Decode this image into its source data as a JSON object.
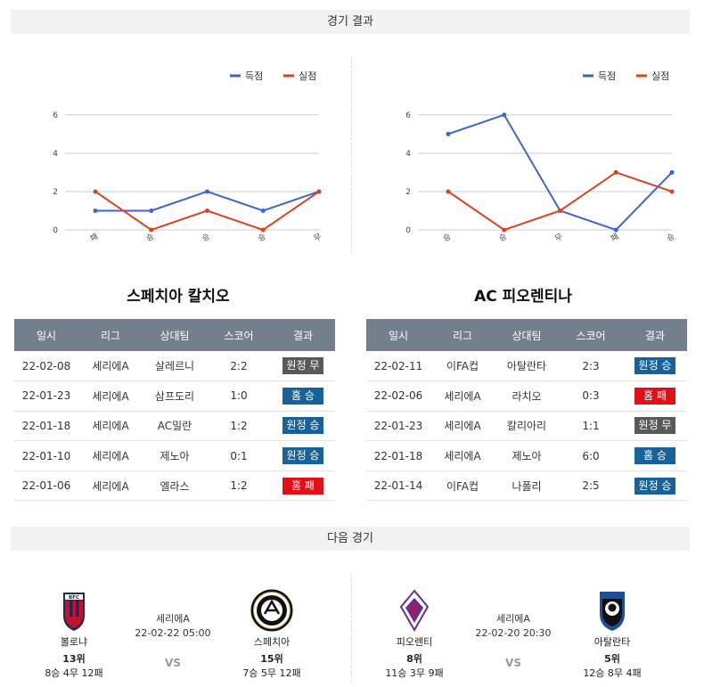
{
  "sections": {
    "results_title": "경기 결과",
    "next_title": "다음 경기"
  },
  "legend": {
    "scored": "득점",
    "conceded": "실점"
  },
  "colors": {
    "scored": "#3a66cc",
    "conceded": "#d9421d",
    "win": "#17629b",
    "lose": "#e01016",
    "draw": "#595959",
    "header": "#737f8c"
  },
  "chart_data": [
    {
      "type": "line",
      "categories": [
        "패",
        "승",
        "승",
        "승",
        "무"
      ],
      "series": [
        {
          "name": "득점",
          "values": [
            1,
            1,
            2,
            1,
            2
          ]
        },
        {
          "name": "실점",
          "values": [
            2,
            0,
            1,
            0,
            2
          ]
        }
      ],
      "yticks": [
        0,
        2,
        4,
        6
      ],
      "ylim": [
        0,
        6.6
      ],
      "legend": "top-right",
      "grid": true
    },
    {
      "type": "line",
      "categories": [
        "승",
        "승",
        "무",
        "패",
        "승"
      ],
      "series": [
        {
          "name": "득점",
          "values": [
            5,
            6,
            1,
            0,
            3
          ]
        },
        {
          "name": "실점",
          "values": [
            2,
            0,
            1,
            3,
            2
          ]
        }
      ],
      "yticks": [
        0,
        2,
        4,
        6
      ],
      "ylim": [
        0,
        6.6
      ],
      "legend": "top-right",
      "grid": true
    }
  ],
  "table_headers": [
    "일시",
    "리그",
    "상대팀",
    "스코어",
    "결과"
  ],
  "teams": [
    {
      "title": "스페치아 칼치오",
      "rows": [
        {
          "date": "22-02-08",
          "league": "세리에A",
          "opponent": "살레르니",
          "score": "2:2",
          "result": "원정 무",
          "kind": "draw"
        },
        {
          "date": "22-01-23",
          "league": "세리에A",
          "opponent": "삼프도리",
          "score": "1:0",
          "result": "홈 승",
          "kind": "win"
        },
        {
          "date": "22-01-18",
          "league": "세리에A",
          "opponent": "AC밀란",
          "score": "1:2",
          "result": "원정 승",
          "kind": "win"
        },
        {
          "date": "22-01-10",
          "league": "세리에A",
          "opponent": "제노아",
          "score": "0:1",
          "result": "원정 승",
          "kind": "win"
        },
        {
          "date": "22-01-06",
          "league": "세리에A",
          "opponent": "엘라스",
          "score": "1:2",
          "result": "홈 패",
          "kind": "lose"
        }
      ]
    },
    {
      "title": "AC 피오렌티나",
      "rows": [
        {
          "date": "22-02-11",
          "league": "이FA컵",
          "opponent": "아탈란타",
          "score": "2:3",
          "result": "원정 승",
          "kind": "win"
        },
        {
          "date": "22-02-06",
          "league": "세리에A",
          "opponent": "라치오",
          "score": "0:3",
          "result": "홈 패",
          "kind": "lose"
        },
        {
          "date": "22-01-23",
          "league": "세리에A",
          "opponent": "칼리아리",
          "score": "1:1",
          "result": "원정 무",
          "kind": "draw"
        },
        {
          "date": "22-01-18",
          "league": "세리에A",
          "opponent": "제노아",
          "score": "6:0",
          "result": "홈 승",
          "kind": "win"
        },
        {
          "date": "22-01-14",
          "league": "이FA컵",
          "opponent": "나폴리",
          "score": "2:5",
          "result": "원정 승",
          "kind": "win"
        }
      ]
    }
  ],
  "next_matches": [
    {
      "home": {
        "name": "볼로냐",
        "rank": "13위",
        "record": "8승 4무 12패",
        "logo": "bologna-crest"
      },
      "away": {
        "name": "스페치아",
        "rank": "15위",
        "record": "7승 5무 12패",
        "logo": "spezia-crest"
      },
      "league": "세리에A",
      "datetime": "22-02-22 05:00",
      "vs": "VS"
    },
    {
      "home": {
        "name": "피오렌티",
        "rank": "8위",
        "record": "11승 3무 9패",
        "logo": "fiorentina-crest"
      },
      "away": {
        "name": "아탈란타",
        "rank": "5위",
        "record": "12승 8무 4패",
        "logo": "atalanta-crest"
      },
      "league": "세리에A",
      "datetime": "22-02-20 20:30",
      "vs": "VS"
    }
  ]
}
